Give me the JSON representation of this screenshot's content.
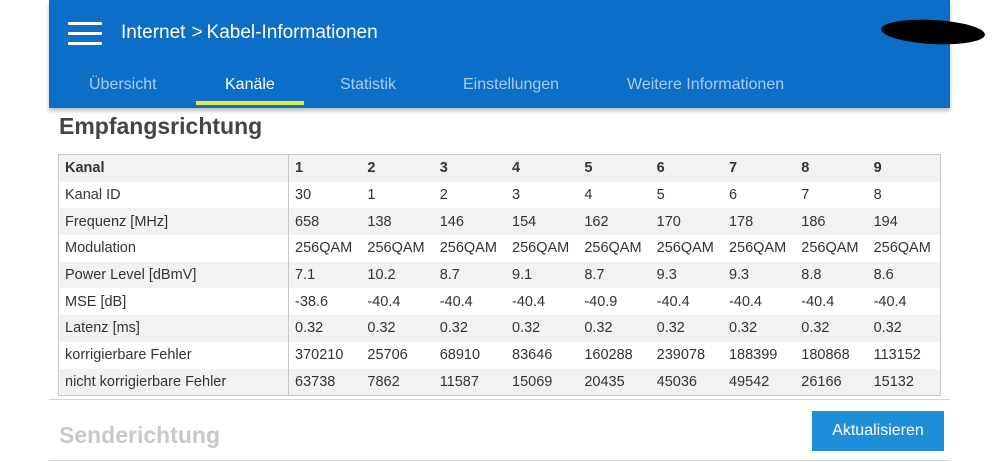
{
  "header": {
    "breadcrumb": [
      "Internet",
      "Kabel-Informationen"
    ],
    "breadcrumb_separator": ">",
    "tabs": [
      {
        "label": "Übersicht",
        "active": false
      },
      {
        "label": "Kanäle",
        "active": true
      },
      {
        "label": "Statistik",
        "active": false
      },
      {
        "label": "Einstellungen",
        "active": false
      },
      {
        "label": "Weitere Informationen",
        "active": false
      }
    ]
  },
  "receive": {
    "title": "Empfangsrichtung",
    "columns": [
      "Kanal",
      "1",
      "2",
      "3",
      "4",
      "5",
      "6",
      "7",
      "8",
      "9"
    ],
    "rows": [
      {
        "label": "Kanal ID",
        "values": [
          "30",
          "1",
          "2",
          "3",
          "4",
          "5",
          "6",
          "7",
          "8"
        ]
      },
      {
        "label": "Frequenz [MHz]",
        "values": [
          "658",
          "138",
          "146",
          "154",
          "162",
          "170",
          "178",
          "186",
          "194"
        ]
      },
      {
        "label": "Modulation",
        "values": [
          "256QAM",
          "256QAM",
          "256QAM",
          "256QAM",
          "256QAM",
          "256QAM",
          "256QAM",
          "256QAM",
          "256QAM"
        ]
      },
      {
        "label": "Power Level [dBmV]",
        "values": [
          "7.1",
          "10.2",
          "8.7",
          "9.1",
          "8.7",
          "9.3",
          "9.3",
          "8.8",
          "8.6"
        ]
      },
      {
        "label": "MSE [dB]",
        "values": [
          "-38.6",
          "-40.4",
          "-40.4",
          "-40.4",
          "-40.9",
          "-40.4",
          "-40.4",
          "-40.4",
          "-40.4"
        ]
      },
      {
        "label": "Latenz [ms]",
        "values": [
          "0.32",
          "0.32",
          "0.32",
          "0.32",
          "0.32",
          "0.32",
          "0.32",
          "0.32",
          "0.32"
        ]
      },
      {
        "label": "korrigierbare Fehler",
        "values": [
          "370210",
          "25706",
          "68910",
          "83646",
          "160288",
          "239078",
          "188399",
          "180868",
          "113152"
        ]
      },
      {
        "label": "nicht korrigierbare Fehler",
        "values": [
          "63738",
          "7862",
          "11587",
          "15069",
          "20435",
          "45036",
          "49542",
          "26166",
          "15132"
        ]
      }
    ]
  },
  "send": {
    "title": "Senderichtung"
  },
  "refresh_button": "Aktualisieren",
  "colors": {
    "header_bg": "#0c6ec7",
    "tab_underline": "#e6ea3c",
    "button_bg": "#1f8ed8"
  }
}
